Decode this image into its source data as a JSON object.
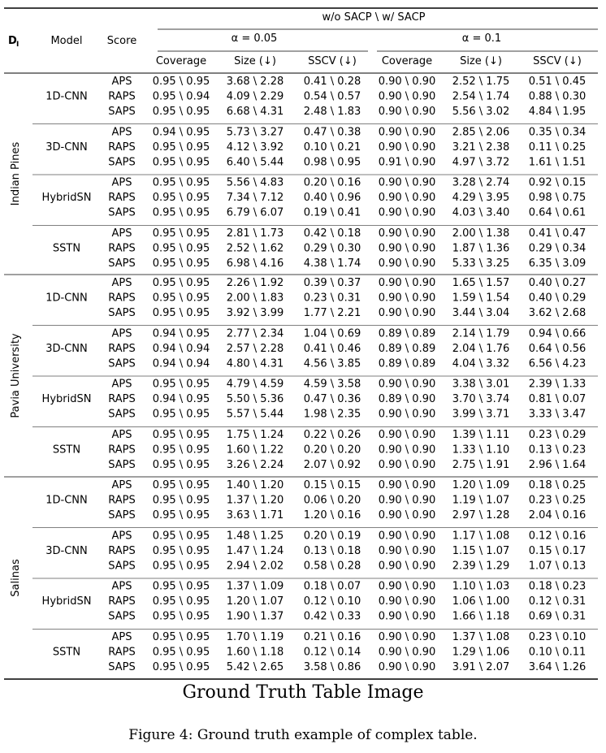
{
  "table": {
    "header": {
      "dataset_col": "D",
      "dataset_col_sub": "I",
      "model_col": "Model",
      "score_col": "Score",
      "group_title": "w/o SACP \\ w/ SACP",
      "alpha_groups": [
        "α = 0.05",
        "α = 0.1"
      ],
      "metrics": [
        "Coverage",
        "Size (↓)",
        "SSCV (↓)",
        "Coverage",
        "Size (↓)",
        "SSCV (↓)"
      ]
    },
    "datasets": [
      {
        "name": "Indian Pines",
        "models": [
          {
            "name": "1D-CNN",
            "rows": [
              {
                "score": "APS",
                "values": [
                  "0.95 \\ 0.95",
                  "3.68 \\ 2.28",
                  "0.41 \\ 0.28",
                  "0.90 \\ 0.90",
                  "2.52 \\ 1.75",
                  "0.51 \\ 0.45"
                ]
              },
              {
                "score": "RAPS",
                "values": [
                  "0.95 \\ 0.94",
                  "4.09 \\ 2.29",
                  "0.54 \\ 0.57",
                  "0.90 \\ 0.90",
                  "2.54 \\ 1.74",
                  "0.88 \\ 0.30"
                ]
              },
              {
                "score": "SAPS",
                "values": [
                  "0.95 \\ 0.95",
                  "6.68 \\ 4.31",
                  "2.48 \\ 1.83",
                  "0.90 \\ 0.90",
                  "5.56 \\ 3.02",
                  "4.84 \\ 1.95"
                ]
              }
            ]
          },
          {
            "name": "3D-CNN",
            "rows": [
              {
                "score": "APS",
                "values": [
                  "0.94 \\ 0.95",
                  "5.73 \\ 3.27",
                  "0.47 \\ 0.38",
                  "0.90 \\ 0.90",
                  "2.85 \\ 2.06",
                  "0.35 \\ 0.34"
                ]
              },
              {
                "score": "RAPS",
                "values": [
                  "0.95 \\ 0.95",
                  "4.12 \\ 3.92",
                  "0.10 \\ 0.21",
                  "0.90 \\ 0.90",
                  "3.21 \\ 2.38",
                  "0.11 \\ 0.25"
                ]
              },
              {
                "score": "SAPS",
                "values": [
                  "0.95 \\ 0.95",
                  "6.40 \\ 5.44",
                  "0.98 \\ 0.95",
                  "0.91 \\ 0.90",
                  "4.97 \\ 3.72",
                  "1.61 \\ 1.51"
                ]
              }
            ]
          },
          {
            "name": "HybridSN",
            "rows": [
              {
                "score": "APS",
                "values": [
                  "0.95 \\ 0.95",
                  "5.56 \\ 4.83",
                  "0.20 \\ 0.16",
                  "0.90 \\ 0.90",
                  "3.28 \\ 2.74",
                  "0.92 \\ 0.15"
                ]
              },
              {
                "score": "RAPS",
                "values": [
                  "0.95 \\ 0.95",
                  "7.34 \\ 7.12",
                  "0.40 \\ 0.96",
                  "0.90 \\ 0.90",
                  "4.29 \\ 3.95",
                  "0.98 \\ 0.75"
                ]
              },
              {
                "score": "SAPS",
                "values": [
                  "0.95 \\ 0.95",
                  "6.79 \\ 6.07",
                  "0.19 \\ 0.41",
                  "0.90 \\ 0.90",
                  "4.03 \\ 3.40",
                  "0.64 \\ 0.61"
                ]
              }
            ]
          },
          {
            "name": "SSTN",
            "rows": [
              {
                "score": "APS",
                "values": [
                  "0.95 \\ 0.95",
                  "2.81 \\ 1.73",
                  "0.42 \\ 0.18",
                  "0.90 \\ 0.90",
                  "2.00 \\ 1.38",
                  "0.41 \\ 0.47"
                ]
              },
              {
                "score": "RAPS",
                "values": [
                  "0.95 \\ 0.95",
                  "2.52 \\ 1.62",
                  "0.29 \\ 0.30",
                  "0.90 \\ 0.90",
                  "1.87 \\ 1.36",
                  "0.29 \\ 0.34"
                ]
              },
              {
                "score": "SAPS",
                "values": [
                  "0.95 \\ 0.95",
                  "6.98 \\ 4.16",
                  "4.38 \\ 1.74",
                  "0.90 \\ 0.90",
                  "5.33 \\ 3.25",
                  "6.35 \\ 3.09"
                ]
              }
            ]
          }
        ]
      },
      {
        "name": "Pavia University",
        "models": [
          {
            "name": "1D-CNN",
            "rows": [
              {
                "score": "APS",
                "values": [
                  "0.95 \\ 0.95",
                  "2.26 \\ 1.92",
                  "0.39 \\ 0.37",
                  "0.90 \\ 0.90",
                  "1.65 \\ 1.57",
                  "0.40 \\ 0.27"
                ]
              },
              {
                "score": "RAPS",
                "values": [
                  "0.95 \\ 0.95",
                  "2.00 \\ 1.83",
                  "0.23 \\ 0.31",
                  "0.90 \\ 0.90",
                  "1.59 \\ 1.54",
                  "0.40 \\ 0.29"
                ]
              },
              {
                "score": "SAPS",
                "values": [
                  "0.95 \\ 0.95",
                  "3.92 \\ 3.99",
                  "1.77 \\ 2.21",
                  "0.90 \\ 0.90",
                  "3.44 \\ 3.04",
                  "3.62 \\ 2.68"
                ]
              }
            ]
          },
          {
            "name": "3D-CNN",
            "rows": [
              {
                "score": "APS",
                "values": [
                  "0.94 \\ 0.95",
                  "2.77 \\ 2.34",
                  "1.04 \\ 0.69",
                  "0.89 \\ 0.89",
                  "2.14 \\ 1.79",
                  "0.94 \\ 0.66"
                ]
              },
              {
                "score": "RAPS",
                "values": [
                  "0.94 \\ 0.94",
                  "2.57 \\ 2.28",
                  "0.41 \\ 0.46",
                  "0.89 \\ 0.89",
                  "2.04 \\ 1.76",
                  "0.64 \\ 0.56"
                ]
              },
              {
                "score": "SAPS",
                "values": [
                  "0.94 \\ 0.94",
                  "4.80 \\ 4.31",
                  "4.56 \\ 3.85",
                  "0.89 \\ 0.89",
                  "4.04 \\ 3.32",
                  "6.56 \\ 4.23"
                ]
              }
            ]
          },
          {
            "name": "HybridSN",
            "rows": [
              {
                "score": "APS",
                "values": [
                  "0.95 \\ 0.95",
                  "4.79 \\ 4.59",
                  "4.59 \\ 3.58",
                  "0.90 \\ 0.90",
                  "3.38 \\ 3.01",
                  "2.39 \\ 1.33"
                ]
              },
              {
                "score": "RAPS",
                "values": [
                  "0.94 \\ 0.95",
                  "5.50 \\ 5.36",
                  "0.47 \\ 0.36",
                  "0.89 \\ 0.90",
                  "3.70 \\ 3.74",
                  "0.81 \\ 0.07"
                ]
              },
              {
                "score": "SAPS",
                "values": [
                  "0.95 \\ 0.95",
                  "5.57 \\ 5.44",
                  "1.98 \\ 2.35",
                  "0.90 \\ 0.90",
                  "3.99 \\ 3.71",
                  "3.33 \\ 3.47"
                ]
              }
            ]
          },
          {
            "name": "SSTN",
            "rows": [
              {
                "score": "APS",
                "values": [
                  "0.95 \\ 0.95",
                  "1.75 \\ 1.24",
                  "0.22 \\ 0.26",
                  "0.90 \\ 0.90",
                  "1.39 \\ 1.11",
                  "0.23 \\ 0.29"
                ]
              },
              {
                "score": "RAPS",
                "values": [
                  "0.95 \\ 0.95",
                  "1.60 \\ 1.22",
                  "0.20 \\ 0.20",
                  "0.90 \\ 0.90",
                  "1.33 \\ 1.10",
                  "0.13 \\ 0.23"
                ]
              },
              {
                "score": "SAPS",
                "values": [
                  "0.95 \\ 0.95",
                  "3.26 \\ 2.24",
                  "2.07 \\ 0.92",
                  "0.90 \\ 0.90",
                  "2.75 \\ 1.91",
                  "2.96 \\ 1.64"
                ]
              }
            ]
          }
        ]
      },
      {
        "name": "Salinas",
        "models": [
          {
            "name": "1D-CNN",
            "rows": [
              {
                "score": "APS",
                "values": [
                  "0.95 \\ 0.95",
                  "1.40 \\ 1.20",
                  "0.15 \\ 0.15",
                  "0.90 \\ 0.90",
                  "1.20 \\ 1.09",
                  "0.18 \\ 0.25"
                ]
              },
              {
                "score": "RAPS",
                "values": [
                  "0.95 \\ 0.95",
                  "1.37 \\ 1.20",
                  "0.06 \\ 0.20",
                  "0.90 \\ 0.90",
                  "1.19 \\ 1.07",
                  "0.23 \\ 0.25"
                ]
              },
              {
                "score": "SAPS",
                "values": [
                  "0.95 \\ 0.95",
                  "3.63 \\ 1.71",
                  "1.20 \\ 0.16",
                  "0.90 \\ 0.90",
                  "2.97 \\ 1.28",
                  "2.04 \\ 0.16"
                ]
              }
            ]
          },
          {
            "name": "3D-CNN",
            "rows": [
              {
                "score": "APS",
                "values": [
                  "0.95 \\ 0.95",
                  "1.48 \\ 1.25",
                  "0.20 \\ 0.19",
                  "0.90 \\ 0.90",
                  "1.17 \\ 1.08",
                  "0.12 \\ 0.16"
                ]
              },
              {
                "score": "RAPS",
                "values": [
                  "0.95 \\ 0.95",
                  "1.47 \\ 1.24",
                  "0.13 \\ 0.18",
                  "0.90 \\ 0.90",
                  "1.15 \\ 1.07",
                  "0.15 \\ 0.17"
                ]
              },
              {
                "score": "SAPS",
                "values": [
                  "0.95 \\ 0.95",
                  "2.94 \\ 2.02",
                  "0.58 \\ 0.28",
                  "0.90 \\ 0.90",
                  "2.39 \\ 1.29",
                  "1.07 \\ 0.13"
                ]
              }
            ]
          },
          {
            "name": "HybridSN",
            "rows": [
              {
                "score": "APS",
                "values": [
                  "0.95 \\ 0.95",
                  "1.37 \\ 1.09",
                  "0.18 \\ 0.07",
                  "0.90 \\ 0.90",
                  "1.10 \\ 1.03",
                  "0.18 \\ 0.23"
                ]
              },
              {
                "score": "RAPS",
                "values": [
                  "0.95 \\ 0.95",
                  "1.20 \\ 1.07",
                  "0.12 \\ 0.10",
                  "0.90 \\ 0.90",
                  "1.06 \\ 1.00",
                  "0.12 \\ 0.31"
                ]
              },
              {
                "score": "SAPS",
                "values": [
                  "0.95 \\ 0.95",
                  "1.90 \\ 1.37",
                  "0.42 \\ 0.33",
                  "0.90 \\ 0.90",
                  "1.66 \\ 1.18",
                  "0.69 \\ 0.31"
                ]
              }
            ]
          },
          {
            "name": "SSTN",
            "rows": [
              {
                "score": "APS",
                "values": [
                  "0.95 \\ 0.95",
                  "1.70 \\ 1.19",
                  "0.21 \\ 0.16",
                  "0.90 \\ 0.90",
                  "1.37 \\ 1.08",
                  "0.23 \\ 0.10"
                ]
              },
              {
                "score": "RAPS",
                "values": [
                  "0.95 \\ 0.95",
                  "1.60 \\ 1.18",
                  "0.12 \\ 0.14",
                  "0.90 \\ 0.90",
                  "1.29 \\ 1.06",
                  "0.10 \\ 0.11"
                ]
              },
              {
                "score": "SAPS",
                "values": [
                  "0.95 \\ 0.95",
                  "5.42 \\ 2.65",
                  "3.58 \\ 0.86",
                  "0.90 \\ 0.90",
                  "3.91 \\ 2.07",
                  "3.64 \\ 1.26"
                ]
              }
            ]
          }
        ]
      }
    ]
  },
  "caption": {
    "title": "Ground Truth Table Image",
    "figure": "Figure 4: Ground truth example of complex table."
  }
}
